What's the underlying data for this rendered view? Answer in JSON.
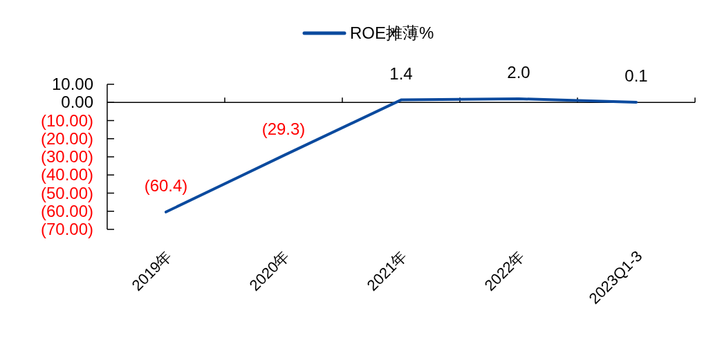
{
  "chart_data": {
    "type": "line",
    "categories": [
      "2019年",
      "2020年",
      "2021年",
      "2022年",
      "2023Q1-3"
    ],
    "series": [
      {
        "name": "ROE摊薄%",
        "color": "#0b4a9e",
        "values": [
          -60.4,
          -29.3,
          1.4,
          2.0,
          0.1
        ],
        "value_labels": [
          "(60.4)",
          "(29.3)",
          "1.4",
          "2.0",
          "0.1"
        ]
      }
    ],
    "ylim": [
      -70,
      10
    ],
    "yticks": [
      {
        "value": 10,
        "label": "10.00"
      },
      {
        "value": 0,
        "label": "0.00"
      },
      {
        "value": -10,
        "label": "(10.00)"
      },
      {
        "value": -20,
        "label": "(20.00)"
      },
      {
        "value": -30,
        "label": "(30.00)"
      },
      {
        "value": -40,
        "label": "(40.00)"
      },
      {
        "value": -50,
        "label": "(50.00)"
      },
      {
        "value": -60,
        "label": "(60.00)"
      },
      {
        "value": -70,
        "label": "(70.00)"
      }
    ],
    "legend": "top",
    "marker": "none",
    "line_style": "solid"
  }
}
